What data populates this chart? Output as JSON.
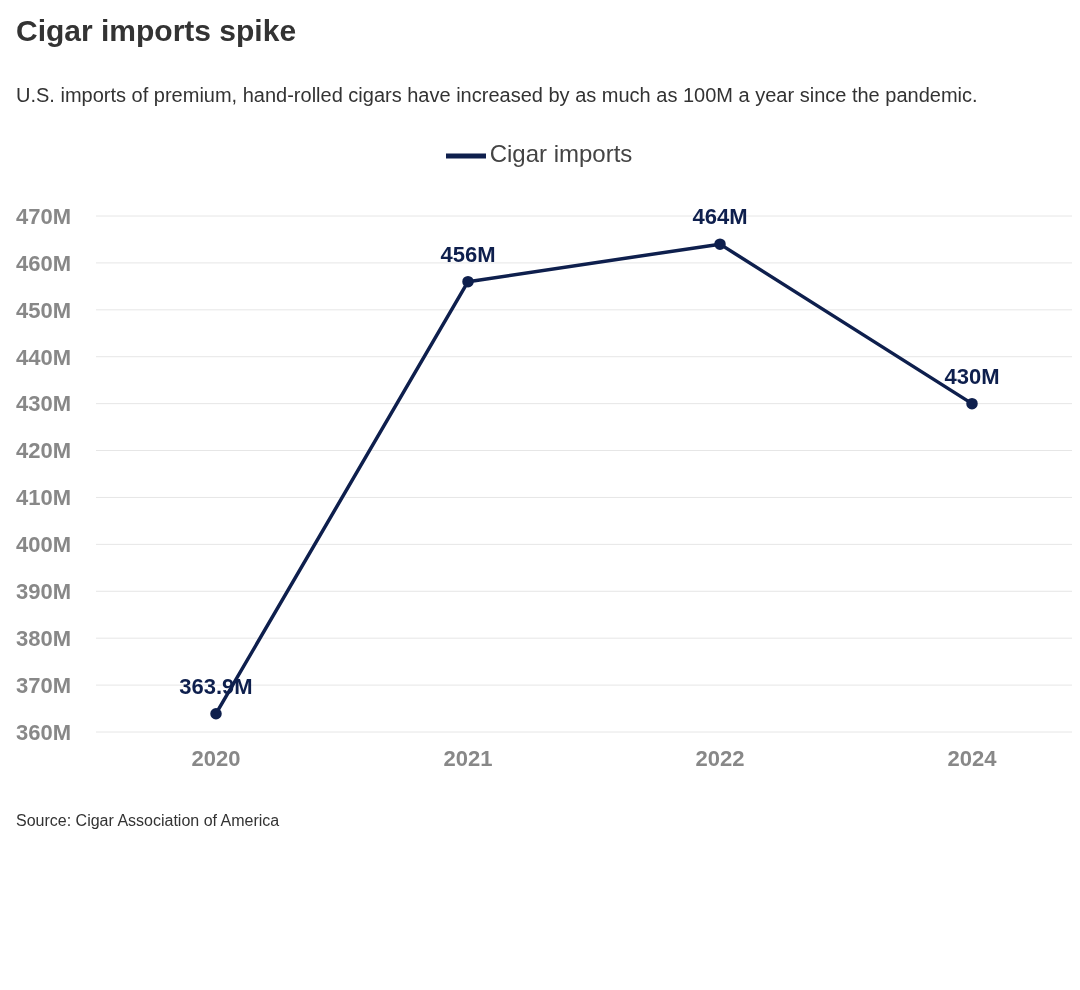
{
  "chart_data": {
    "type": "line",
    "title": "Cigar imports spike",
    "subtitle": "U.S. imports of premium, hand-rolled cigars have increased by as much as 100M a year since the pandemic.",
    "categories": [
      "2020",
      "2021",
      "2022",
      "2024"
    ],
    "series": [
      {
        "name": "Cigar imports",
        "color": "#0e1f4d",
        "values": [
          363.9,
          456,
          464,
          430
        ],
        "value_labels": [
          "363.9M",
          "456M",
          "464M",
          "430M"
        ]
      }
    ],
    "ylim": [
      360,
      470
    ],
    "yticks": [
      {
        "value": 360,
        "label": "360M"
      },
      {
        "value": 370,
        "label": "370M"
      },
      {
        "value": 380,
        "label": "380M"
      },
      {
        "value": 390,
        "label": "390M"
      },
      {
        "value": 400,
        "label": "400M"
      },
      {
        "value": 410,
        "label": "410M"
      },
      {
        "value": 420,
        "label": "420M"
      },
      {
        "value": 430,
        "label": "430M"
      },
      {
        "value": 440,
        "label": "440M"
      },
      {
        "value": 450,
        "label": "450M"
      },
      {
        "value": 460,
        "label": "460M"
      },
      {
        "value": 470,
        "label": "470M"
      }
    ],
    "grid": "y",
    "legend": "top",
    "marker": "circle",
    "line_style": "solid",
    "annotations": [
      "Source: Cigar Association of America"
    ]
  }
}
